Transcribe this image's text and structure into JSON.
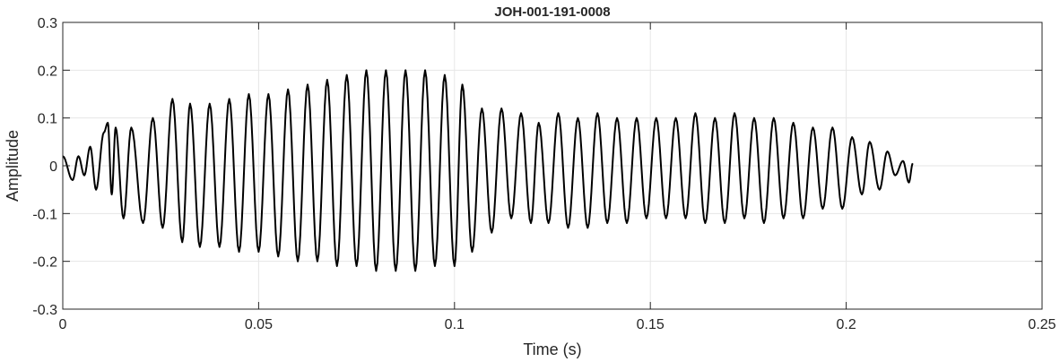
{
  "chart_data": {
    "type": "line",
    "title": "JOH-001-191-0008",
    "xlabel": "Time (s)",
    "ylabel": "Amplitude",
    "xlim": [
      0,
      0.25
    ],
    "ylim": [
      -0.3,
      0.3
    ],
    "x_ticks": [
      0,
      0.05,
      0.1,
      0.15,
      0.2,
      0.25
    ],
    "x_tick_labels": [
      "0",
      "0.05",
      "0.1",
      "0.15",
      "0.2",
      "0.25"
    ],
    "y_ticks": [
      -0.3,
      -0.2,
      -0.1,
      0,
      0.1,
      0.2,
      0.3
    ],
    "y_tick_labels": [
      "-0.3",
      "-0.2",
      "-0.1",
      "0",
      "0.1",
      "0.2",
      "0.3"
    ],
    "grid": true,
    "line_color": "#000000",
    "series": [
      {
        "x": [
          0,
          0.0025,
          0.004,
          0.0055,
          0.007,
          0.0085,
          0.0105,
          0.0115,
          0.0125,
          0.0135,
          0.0155,
          0.0175,
          0.0205,
          0.023,
          0.0255,
          0.028,
          0.0305,
          0.0325,
          0.035,
          0.0375,
          0.04,
          0.0425,
          0.045,
          0.0475,
          0.05,
          0.0525,
          0.055,
          0.0575,
          0.06,
          0.0625,
          0.065,
          0.0675,
          0.07,
          0.0725,
          0.075,
          0.0775,
          0.08,
          0.0825,
          0.085,
          0.0875,
          0.09,
          0.0925,
          0.095,
          0.0975,
          0.1,
          0.102,
          0.1045,
          0.107,
          0.1095,
          0.112,
          0.1145,
          0.117,
          0.1195,
          0.1215,
          0.124,
          0.1265,
          0.129,
          0.1315,
          0.134,
          0.1365,
          0.139,
          0.1415,
          0.144,
          0.1465,
          0.149,
          0.1515,
          0.154,
          0.1565,
          0.159,
          0.1615,
          0.164,
          0.1665,
          0.169,
          0.1715,
          0.174,
          0.1765,
          0.179,
          0.1815,
          0.184,
          0.1865,
          0.189,
          0.1915,
          0.194,
          0.1965,
          0.199,
          0.2015,
          0.204,
          0.206,
          0.2085,
          0.2105,
          0.2125,
          0.2145,
          0.216,
          0.217
        ],
        "y": [
          0.02,
          -0.03,
          0.02,
          -0.02,
          0.04,
          -0.05,
          0.07,
          0.09,
          -0.06,
          0.08,
          -0.11,
          0.08,
          -0.12,
          0.1,
          -0.13,
          0.14,
          -0.16,
          0.13,
          -0.17,
          0.13,
          -0.17,
          0.14,
          -0.18,
          0.15,
          -0.18,
          0.15,
          -0.19,
          0.16,
          -0.2,
          0.17,
          -0.2,
          0.18,
          -0.21,
          0.19,
          -0.21,
          0.2,
          -0.22,
          0.2,
          -0.22,
          0.2,
          -0.22,
          0.2,
          -0.21,
          0.19,
          -0.21,
          0.17,
          -0.18,
          0.12,
          -0.14,
          0.12,
          -0.11,
          0.11,
          -0.12,
          0.09,
          -0.12,
          0.11,
          -0.13,
          0.1,
          -0.13,
          0.11,
          -0.12,
          0.1,
          -0.12,
          0.1,
          -0.11,
          0.1,
          -0.11,
          0.1,
          -0.11,
          0.11,
          -0.12,
          0.1,
          -0.12,
          0.11,
          -0.11,
          0.1,
          -0.12,
          0.1,
          -0.11,
          0.09,
          -0.11,
          0.08,
          -0.09,
          0.08,
          -0.09,
          0.06,
          -0.06,
          0.05,
          -0.05,
          0.03,
          -0.02,
          0.01,
          -0.035,
          0.005
        ]
      }
    ]
  }
}
